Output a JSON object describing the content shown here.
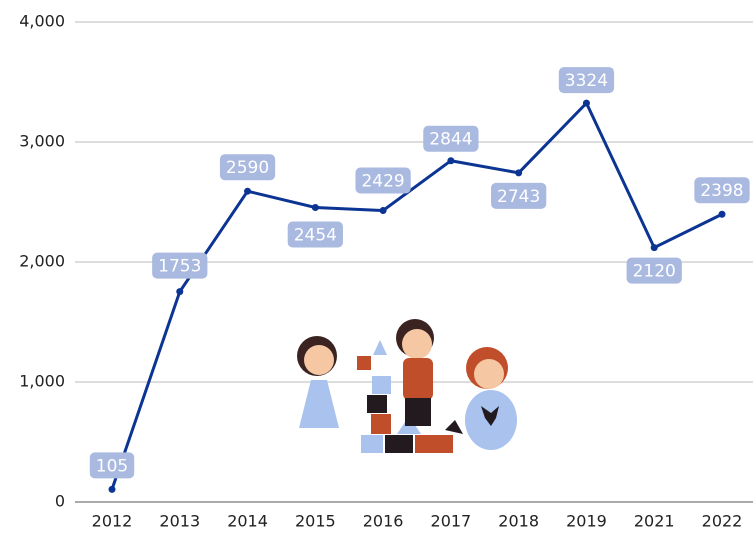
{
  "chart_data": {
    "type": "line",
    "categories": [
      "2012",
      "2013",
      "2014",
      "2015",
      "2016",
      "2017",
      "2018",
      "2019",
      "2021",
      "2022"
    ],
    "series": [
      {
        "color": "#0b3493",
        "values": [
          105,
          1753,
          2590,
          2454,
          2429,
          2844,
          2743,
          3324,
          2120,
          2398
        ]
      }
    ],
    "ylim": [
      0,
      4000
    ],
    "yticks": [
      {
        "value": 0,
        "label": "0"
      },
      {
        "value": 1000,
        "label": "1,000"
      },
      {
        "value": 2000,
        "label": "2,000"
      },
      {
        "value": 3000,
        "label": "3,000"
      },
      {
        "value": 4000,
        "label": "4,000"
      }
    ],
    "grid": true
  }
}
